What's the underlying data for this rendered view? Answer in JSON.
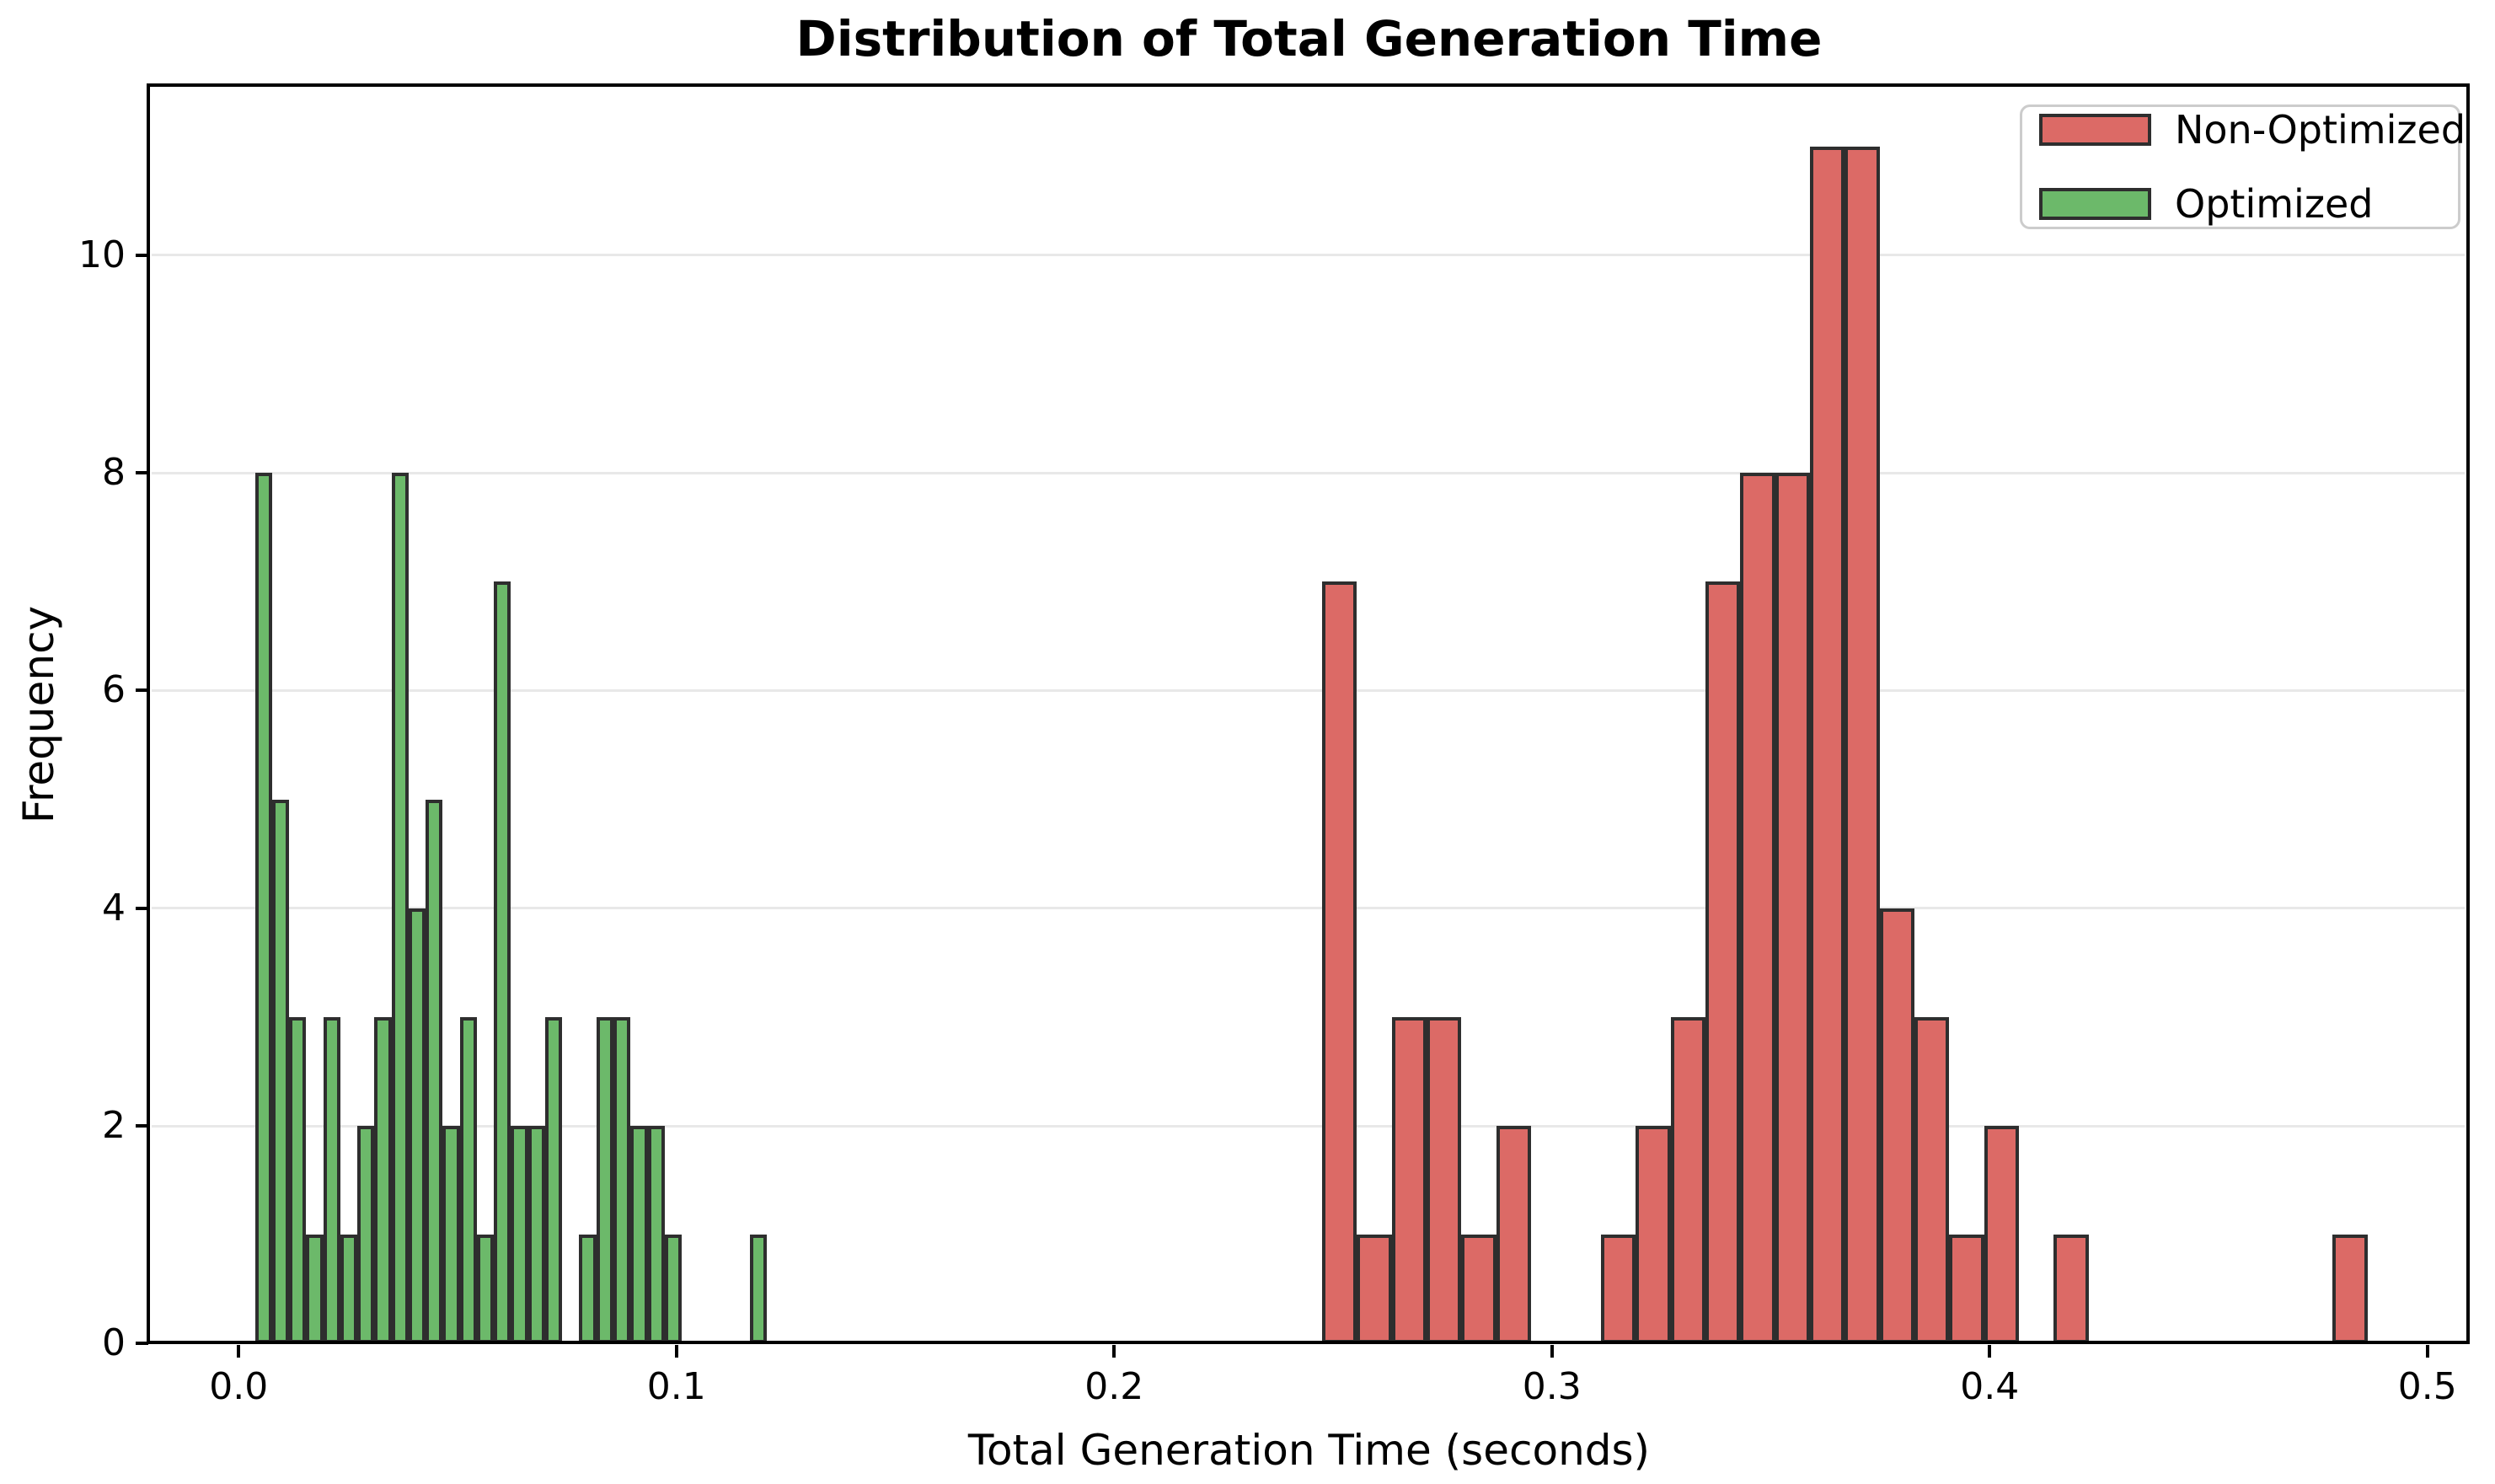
{
  "chart_data": {
    "type": "bar",
    "subtype": "histogram",
    "title": "Distribution of Total Generation Time",
    "xlabel": "Total Generation Time (seconds)",
    "ylabel": "Frequency",
    "xlim": [
      -0.0205,
      0.5095
    ],
    "ylim": [
      0,
      11.56
    ],
    "grid": "horizontal",
    "legend_position": "upper-right",
    "background_color": "#ffffff",
    "gridline_color": "#e8e8e8",
    "spine_color": "#000000",
    "bar_edge_color": "#2e2e2e",
    "x_ticks": [
      {
        "value": 0.0,
        "label": "0.0"
      },
      {
        "value": 0.1,
        "label": "0.1"
      },
      {
        "value": 0.2,
        "label": "0.2"
      },
      {
        "value": 0.3,
        "label": "0.3"
      },
      {
        "value": 0.4,
        "label": "0.4"
      },
      {
        "value": 0.5,
        "label": "0.5"
      }
    ],
    "y_ticks": [
      {
        "value": 0,
        "label": "0"
      },
      {
        "value": 2,
        "label": "2"
      },
      {
        "value": 4,
        "label": "4"
      },
      {
        "value": 6,
        "label": "6"
      },
      {
        "value": 8,
        "label": "8"
      },
      {
        "value": 10,
        "label": "10"
      }
    ],
    "series": [
      {
        "name": "Non-Optimized",
        "color": "#dc6a66",
        "bin_start": 0.2475,
        "bin_width": 0.00796,
        "counts": [
          7,
          1,
          3,
          3,
          1,
          2,
          0,
          0,
          1,
          2,
          3,
          7,
          8,
          8,
          11,
          11,
          4,
          3,
          1,
          2,
          0,
          1,
          0,
          0,
          0,
          0,
          0,
          0,
          0,
          1
        ],
        "total": 80,
        "data_range": [
          0.2475,
          0.4863
        ]
      },
      {
        "name": "Optimized",
        "color": "#6cb96a",
        "bin_start": 0.0037,
        "bin_width": 0.0039,
        "counts": [
          8,
          5,
          3,
          1,
          3,
          1,
          2,
          3,
          8,
          4,
          5,
          2,
          3,
          1,
          7,
          2,
          2,
          3,
          0,
          1,
          3,
          3,
          2,
          2,
          1,
          0,
          0,
          0,
          0,
          1
        ],
        "total": 76,
        "data_range": [
          0.0037,
          0.1207
        ]
      }
    ]
  }
}
